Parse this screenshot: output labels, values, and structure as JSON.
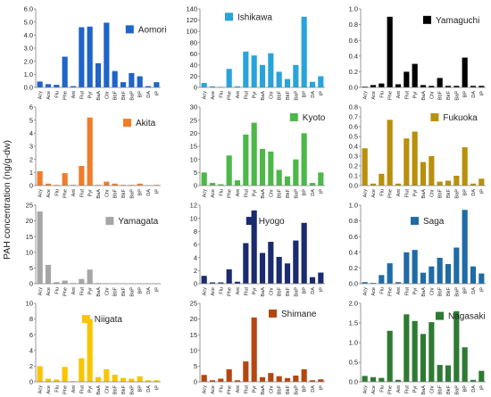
{
  "figure": {
    "ylabel": "PAH concentration (ng/g-dw)",
    "categories": [
      "Acy",
      "Ace",
      "Flu",
      "Phe",
      "Ant",
      "Flut",
      "Pyr",
      "BaA",
      "Chr",
      "BbF",
      "BkF",
      "BaP",
      "BP",
      "DA",
      "IP"
    ]
  },
  "chart_data": [
    {
      "type": "bar",
      "name": "Aomori",
      "color": "#1f64c8",
      "ylim": [
        0,
        6
      ],
      "ticks": [
        "0.0",
        "1.0",
        "2.0",
        "3.0",
        "4.0",
        "5.0",
        "6.0"
      ],
      "values": [
        0.45,
        0.25,
        0.2,
        2.35,
        0.1,
        4.6,
        4.65,
        1.85,
        4.95,
        1.25,
        0.4,
        1.1,
        0.85,
        0.1,
        0.4
      ]
    },
    {
      "type": "bar",
      "name": "Ishikawa",
      "color": "#29a3dc",
      "ylim": [
        0,
        140
      ],
      "ticks": [
        "0",
        "20",
        "40",
        "60",
        "80",
        "100",
        "120",
        "140"
      ],
      "values": [
        8,
        2,
        1,
        33,
        2,
        64,
        57,
        40,
        61,
        28,
        15,
        40,
        126,
        10,
        20
      ]
    },
    {
      "type": "bar",
      "name": "Yamaguchi",
      "color": "#000000",
      "ylim": [
        0,
        1
      ],
      "ticks": [
        "0.0",
        "0.2",
        "0.4",
        "0.6",
        "0.8",
        "1.0"
      ],
      "values": [
        0.01,
        0.03,
        0.05,
        0.9,
        0.04,
        0.2,
        0.3,
        0.03,
        0.02,
        0.12,
        0.02,
        0.02,
        0.38,
        0.02,
        0.02
      ]
    },
    {
      "type": "bar",
      "name": "Akita",
      "color": "#f07d2a",
      "ylim": [
        0,
        6
      ],
      "ticks": [
        "0",
        "1",
        "2",
        "3",
        "4",
        "5",
        "6"
      ],
      "values": [
        1.1,
        0.15,
        0.05,
        0.95,
        0.05,
        1.5,
        5.2,
        0.05,
        0.3,
        0.15,
        0.05,
        0.05,
        0.15,
        0.02,
        0.05
      ]
    },
    {
      "type": "bar",
      "name": "Kyoto",
      "color": "#4cb848",
      "ylim": [
        0,
        30
      ],
      "ticks": [
        "0",
        "5",
        "10",
        "15",
        "20",
        "25",
        "30"
      ],
      "values": [
        5,
        1,
        0.5,
        11.5,
        2,
        19.5,
        24,
        14,
        13,
        6,
        3.5,
        10,
        20,
        1,
        5
      ]
    },
    {
      "type": "bar",
      "name": "Fukuoka",
      "color": "#b8900d",
      "ylim": [
        0,
        0.8
      ],
      "ticks": [
        "0.0",
        "0.1",
        "0.2",
        "0.3",
        "0.4",
        "0.5",
        "0.6",
        "0.7",
        "0.8"
      ],
      "values": [
        0.38,
        0.02,
        0.12,
        0.67,
        0.02,
        0.48,
        0.55,
        0.24,
        0.3,
        0.04,
        0.05,
        0.1,
        0.39,
        0.02,
        0.07
      ]
    },
    {
      "type": "bar",
      "name": "Yamagata",
      "color": "#a6a6a6",
      "ylim": [
        0,
        25
      ],
      "ticks": [
        "0",
        "5",
        "10",
        "15",
        "20",
        "25"
      ],
      "values": [
        23,
        6,
        0.5,
        1,
        0.2,
        1.5,
        4.5,
        0.2,
        0.1,
        0.1,
        0.1,
        0.1,
        0.1,
        0.1,
        0.1
      ]
    },
    {
      "type": "bar",
      "name": "Hyogo",
      "color": "#1a2b6e",
      "ylim": [
        0,
        12
      ],
      "ticks": [
        "0",
        "2",
        "4",
        "6",
        "8",
        "10",
        "12"
      ],
      "values": [
        1.2,
        0.2,
        0.2,
        2.2,
        0.3,
        6.2,
        11.2,
        4.7,
        6.4,
        4.1,
        3.1,
        6.6,
        9.3,
        1,
        1.7
      ]
    },
    {
      "type": "bar",
      "name": "Saga",
      "color": "#1f6ba5",
      "ylim": [
        0,
        1
      ],
      "ticks": [
        "0.0",
        "0.2",
        "0.4",
        "0.6",
        "0.8",
        "1.0"
      ],
      "values": [
        0.02,
        0.01,
        0.11,
        0.26,
        0.02,
        0.4,
        0.43,
        0.14,
        0.22,
        0.33,
        0.25,
        0.46,
        0.94,
        0.22,
        0.13
      ]
    },
    {
      "type": "bar",
      "name": "Niigata",
      "color": "#f8c500",
      "ylim": [
        0,
        10
      ],
      "ticks": [
        "0",
        "2",
        "4",
        "6",
        "8",
        "10"
      ],
      "values": [
        2,
        0.4,
        0.3,
        1.9,
        0.1,
        3,
        8,
        0.6,
        1.6,
        0.9,
        0.5,
        0.4,
        0.7,
        0.2,
        0.2
      ]
    },
    {
      "type": "bar",
      "name": "Shimane",
      "color": "#b5460f",
      "ylim": [
        0,
        25
      ],
      "ticks": [
        "0",
        "5",
        "10",
        "15",
        "20",
        "25"
      ],
      "values": [
        2.2,
        0.5,
        1,
        4,
        0.5,
        6.5,
        20.5,
        1.5,
        2.8,
        1.8,
        1.2,
        2,
        4,
        0.5,
        0.8
      ]
    },
    {
      "type": "bar",
      "name": "Nagasaki",
      "color": "#2e7a32",
      "ylim": [
        0,
        2
      ],
      "ticks": [
        "0.0",
        "0.5",
        "1.0",
        "1.5",
        "2.0"
      ],
      "values": [
        0.15,
        0.12,
        0.1,
        1.3,
        0.05,
        1.72,
        1.55,
        1.22,
        1.52,
        0.43,
        0.42,
        1.8,
        0.88,
        0.05,
        0.28
      ]
    }
  ]
}
